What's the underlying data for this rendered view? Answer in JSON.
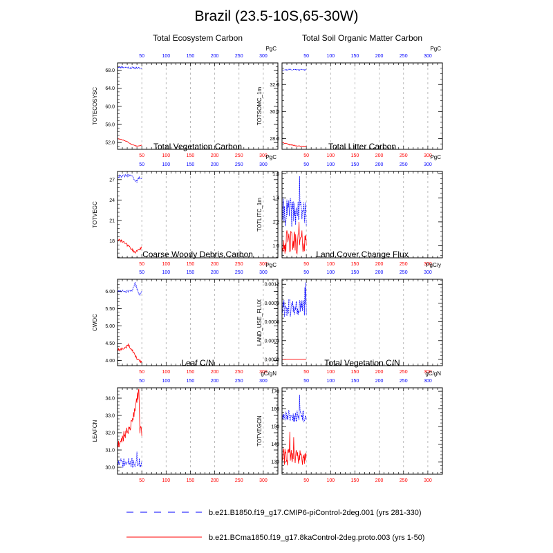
{
  "title": "Brazil (23.5-10S,65-30W)",
  "colors": {
    "ctrl": "#0000ff",
    "exp": "#ff0000",
    "grid": "#aaaaaa",
    "frame": "#000000"
  },
  "legend": [
    {
      "label": "b.e21.B1850.f19_g17.CMIP6-piControl-2deg.001 (yrs 281-330)",
      "color": "#0000ff",
      "style": "dashed"
    },
    {
      "label": "b.e21.BCma1850.f19_g17.8kaControl-2deg.proto.003 (yrs 1-50)",
      "color": "#ff0000",
      "style": "solid"
    }
  ],
  "chart_data": [
    {
      "type": "line",
      "title": "Total Ecosystem Carbon",
      "ylabel": "TOTECOSYSC",
      "units": "PgC",
      "xlim": [
        0,
        330
      ],
      "ylim": [
        50.5,
        69.6
      ],
      "xticks_top": [
        "50",
        "100",
        "150",
        "200",
        "250",
        "300"
      ],
      "xticks_bottom": [
        "50",
        "100",
        "150",
        "200",
        "250",
        "300"
      ],
      "yticks": [
        52.0,
        56.0,
        60.0,
        64.0,
        68.0
      ],
      "ytick_labels": [
        "52.0",
        "56.0",
        "60.0",
        "64.0",
        "68.0"
      ],
      "series": [
        {
          "color": "ctrl",
          "x_start": 1,
          "gen": {
            "type": "drift",
            "start": 68.7,
            "end": 68.4,
            "noise": 0.22,
            "seed": 11
          }
        },
        {
          "color": "exp",
          "x_start": 1,
          "gen": {
            "type": "curve",
            "points": [
              [
                1,
                52.9
              ],
              [
                10,
                52.6
              ],
              [
                20,
                52.2
              ],
              [
                30,
                51.5
              ],
              [
                40,
                51.2
              ],
              [
                50,
                51.4
              ]
            ],
            "noise": 0.07,
            "seed": 12
          }
        }
      ]
    },
    {
      "type": "line",
      "title": "Total Soil Organic Matter Carbon",
      "ylabel": "TOTSOMC_1m",
      "units": "PgC",
      "xlim": [
        0,
        330
      ],
      "ylim": [
        27.2,
        33.6
      ],
      "xticks_top": [
        "50",
        "100",
        "150",
        "200",
        "250",
        "300"
      ],
      "xticks_bottom": [
        "50",
        "100",
        "150",
        "200",
        "250",
        "300"
      ],
      "yticks": [
        28.0,
        30.0,
        32.0
      ],
      "ytick_labels": [
        "28.0",
        "30.0",
        "32.0"
      ],
      "series": [
        {
          "color": "ctrl",
          "x_start": 1,
          "gen": {
            "type": "drift",
            "start": 33.1,
            "end": 33.1,
            "noise": 0.05,
            "seed": 21
          }
        },
        {
          "color": "exp",
          "x_start": 1,
          "gen": {
            "type": "curve",
            "points": [
              [
                1,
                27.7
              ],
              [
                15,
                27.55
              ],
              [
                30,
                27.45
              ],
              [
                50,
                27.4
              ]
            ],
            "noise": 0.03,
            "seed": 22
          }
        }
      ]
    },
    {
      "type": "line",
      "title": "Total Vegetation Carbon",
      "ylabel": "TOTVEGC",
      "units": "PgC",
      "xlim": [
        0,
        330
      ],
      "ylim": [
        15.5,
        28.2
      ],
      "xticks_top": [
        "50",
        "100",
        "150",
        "200",
        "250",
        "300"
      ],
      "xticks_bottom": [
        "50",
        "100",
        "150",
        "200",
        "250",
        "300"
      ],
      "yticks": [
        18,
        21,
        24,
        27
      ],
      "ytick_labels": [
        "18",
        "21",
        "24",
        "27"
      ],
      "series": [
        {
          "color": "ctrl",
          "x_start": 1,
          "gen": {
            "type": "curve",
            "points": [
              [
                1,
                27.5
              ],
              [
                30,
                27.6
              ],
              [
                36,
                26.9
              ],
              [
                40,
                26.7
              ],
              [
                44,
                27.3
              ],
              [
                50,
                27.1
              ]
            ],
            "noise": 0.18,
            "seed": 31
          }
        },
        {
          "color": "exp",
          "x_start": 1,
          "gen": {
            "type": "curve",
            "points": [
              [
                1,
                18.2
              ],
              [
                15,
                17.7
              ],
              [
                25,
                17.1
              ],
              [
                35,
                16.3
              ],
              [
                50,
                17.0
              ]
            ],
            "noise": 0.2,
            "seed": 32
          }
        }
      ]
    },
    {
      "type": "line",
      "title": "Total Litter Carbon",
      "ylabel": "TOTLITC_1m",
      "units": "PgC",
      "xlim": [
        0,
        330
      ],
      "ylim": [
        0.9,
        1.62
      ],
      "xticks_top": [
        "50",
        "100",
        "150",
        "200",
        "250",
        "300"
      ],
      "xticks_bottom": [
        "50",
        "100",
        "150",
        "200",
        "250",
        "300"
      ],
      "yticks": [
        1.0,
        1.2,
        1.4,
        1.6
      ],
      "ytick_labels": [
        "1.0",
        "1.2",
        "1.4",
        "1.6"
      ],
      "series": [
        {
          "color": "ctrl",
          "x_start": 1,
          "gen": {
            "type": "noise",
            "mean": 1.28,
            "amp": 0.12,
            "seed": 41,
            "spikes": [
              [
                36,
                1.58
              ]
            ]
          }
        },
        {
          "color": "exp",
          "x_start": 1,
          "gen": {
            "type": "noise",
            "mean": 1.03,
            "amp": 0.1,
            "seed": 42,
            "spikes": [
              [
                35,
                1.2
              ]
            ]
          }
        }
      ]
    },
    {
      "type": "line",
      "title": "Coarse Woody Debris Carbon",
      "ylabel": "CWDC",
      "units": "PgC",
      "xlim": [
        0,
        330
      ],
      "ylim": [
        3.85,
        6.35
      ],
      "xticks_top": [
        "50",
        "100",
        "150",
        "200",
        "250",
        "300"
      ],
      "xticks_bottom": [
        "50",
        "100",
        "150",
        "200",
        "250",
        "300"
      ],
      "yticks": [
        4.0,
        4.5,
        5.0,
        5.5,
        6.0
      ],
      "ytick_labels": [
        "4.00",
        "4.50",
        "5.00",
        "5.50",
        "6.00"
      ],
      "series": [
        {
          "color": "ctrl",
          "x_start": 1,
          "gen": {
            "type": "curve",
            "points": [
              [
                1,
                6.0
              ],
              [
                30,
                6.0
              ],
              [
                36,
                6.25
              ],
              [
                40,
                6.1
              ],
              [
                45,
                5.9
              ],
              [
                50,
                6.0
              ]
            ],
            "noise": 0.04,
            "seed": 51
          }
        },
        {
          "color": "exp",
          "x_start": 1,
          "gen": {
            "type": "curve",
            "points": [
              [
                1,
                4.3
              ],
              [
                15,
                4.35
              ],
              [
                22,
                4.45
              ],
              [
                30,
                4.3
              ],
              [
                40,
                4.05
              ],
              [
                50,
                3.95
              ]
            ],
            "noise": 0.04,
            "seed": 52
          }
        }
      ]
    },
    {
      "type": "line",
      "title": "Land Cover Change Flux",
      "ylabel": "LAND_USE_FLUX",
      "units": "PgC/y",
      "xlim": [
        0,
        330
      ],
      "ylim": [
        -0.0001,
        0.00128
      ],
      "xticks_top": [
        "50",
        "100",
        "150",
        "200",
        "250",
        "300"
      ],
      "xticks_bottom": [
        "50",
        "100",
        "150",
        "200",
        "250",
        "300"
      ],
      "yticks": [
        0.0,
        0.0003,
        0.0006,
        0.0009,
        0.0012
      ],
      "ytick_labels": [
        "0.0000",
        "0.0003",
        "0.0006",
        "0.0009",
        "0.0012"
      ],
      "series": [
        {
          "color": "ctrl",
          "x_start": 1,
          "gen": {
            "type": "noise",
            "mean": 0.00082,
            "amp": 0.00015,
            "seed": 61,
            "spikes": [
              [
                49,
                0.00123
              ],
              [
                47,
                0.00115
              ]
            ]
          }
        },
        {
          "color": "exp",
          "x_start": 1,
          "gen": {
            "type": "drift",
            "start": 0.0,
            "end": 0.0,
            "noise": 0.0,
            "seed": 62
          }
        }
      ]
    },
    {
      "type": "line",
      "title": "Leaf C/N",
      "ylabel": "LEAFCN",
      "units": "gC/gN",
      "xlim": [
        0,
        330
      ],
      "ylim": [
        29.6,
        34.6
      ],
      "xticks_top": [
        "50",
        "100",
        "150",
        "200",
        "250",
        "300"
      ],
      "xticks_bottom": [
        "50",
        "100",
        "150",
        "200",
        "250",
        "300"
      ],
      "yticks": [
        30.0,
        31.0,
        32.0,
        33.0,
        34.0
      ],
      "ytick_labels": [
        "30.0",
        "31.0",
        "32.0",
        "33.0",
        "34.0"
      ],
      "series": [
        {
          "color": "ctrl",
          "x_start": 1,
          "gen": {
            "type": "noise",
            "mean": 30.25,
            "amp": 0.28,
            "seed": 71,
            "spikes": [
              [
                40,
                30.9
              ]
            ]
          }
        },
        {
          "color": "exp",
          "x_start": 1,
          "gen": {
            "type": "curve",
            "points": [
              [
                1,
                31.3
              ],
              [
                10,
                31.7
              ],
              [
                20,
                32.1
              ],
              [
                30,
                32.6
              ],
              [
                38,
                33.8
              ],
              [
                44,
                34.3
              ],
              [
                46,
                32.2
              ],
              [
                50,
                32.1
              ]
            ],
            "noise": 0.3,
            "seed": 72
          }
        }
      ]
    },
    {
      "type": "line",
      "title": "Total Vegetation C/N",
      "ylabel": "TOTVEGCN",
      "units": "gC/gN",
      "xlim": [
        0,
        330
      ],
      "ylim": [
        123,
        172
      ],
      "xticks_top": [
        "50",
        "100",
        "150",
        "200",
        "250",
        "300"
      ],
      "xticks_bottom": [
        "50",
        "100",
        "150",
        "200",
        "250",
        "300"
      ],
      "yticks": [
        130,
        140,
        150,
        160,
        170
      ],
      "ytick_labels": [
        "130",
        "140",
        "150",
        "160",
        "170"
      ],
      "series": [
        {
          "color": "ctrl",
          "x_start": 1,
          "gen": {
            "type": "noise",
            "mean": 156,
            "amp": 3.5,
            "seed": 81,
            "spikes": [
              [
                36,
                168
              ]
            ]
          }
        },
        {
          "color": "exp",
          "x_start": 1,
          "gen": {
            "type": "noise",
            "mean": 133,
            "amp": 5,
            "seed": 82,
            "spikes": [
              [
                16,
                147
              ],
              [
                24,
                144
              ]
            ]
          }
        }
      ]
    }
  ]
}
